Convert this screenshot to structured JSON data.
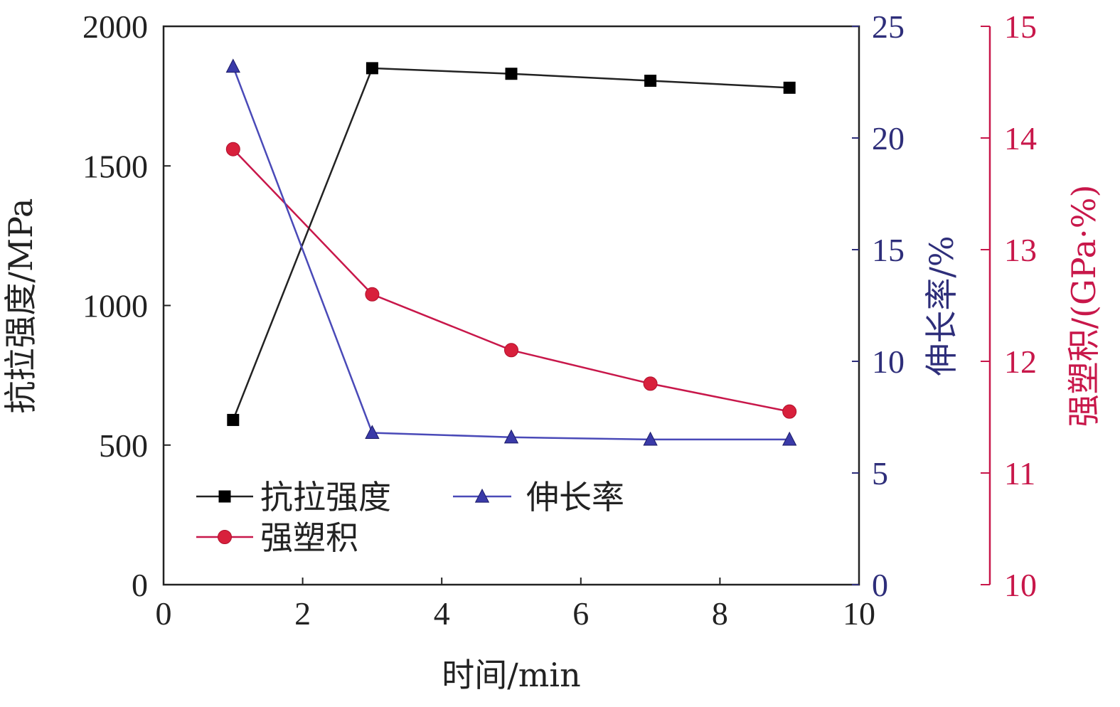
{
  "chart_data": {
    "type": "line",
    "x": [
      1,
      3,
      5,
      7,
      9
    ],
    "xlabel": "时间/min",
    "xlim": [
      0,
      10
    ],
    "x_ticks": [
      "0",
      "2",
      "4",
      "6",
      "8",
      "10"
    ],
    "grid": false,
    "legend_position": "bottom-left",
    "axes": {
      "left": {
        "label": "抗拉强度/MPa",
        "lim": [
          0,
          2000
        ],
        "ticks": [
          "0",
          "500",
          "1000",
          "1500",
          "2000"
        ],
        "color": "#222222"
      },
      "right1": {
        "label": "伸长率/%",
        "lim": [
          0,
          25
        ],
        "ticks": [
          "0",
          "5",
          "10",
          "15",
          "20",
          "25"
        ],
        "color": "#2e2e7a"
      },
      "right2": {
        "label": "强塑积/(GPa·%)",
        "lim": [
          10,
          15
        ],
        "ticks": [
          "10",
          "11",
          "12",
          "13",
          "14",
          "15"
        ],
        "color": "#c8174a"
      }
    },
    "series": [
      {
        "name": "抗拉强度",
        "axis": "left",
        "values": [
          590,
          1850,
          1830,
          1805,
          1780
        ],
        "color": "#000000",
        "line_color": "#222222",
        "marker": "square"
      },
      {
        "name": "伸长率",
        "axis": "right1",
        "values": [
          23.2,
          6.8,
          6.6,
          6.5,
          6.5
        ],
        "color": "#3a3aa8",
        "line_color": "#4a4ab8",
        "marker": "triangle"
      },
      {
        "name": "强塑积",
        "axis": "right2",
        "values": [
          13.9,
          12.6,
          12.1,
          11.8,
          11.55
        ],
        "color": "#d8203c",
        "line_color": "#c8174a",
        "marker": "circle"
      }
    ]
  }
}
